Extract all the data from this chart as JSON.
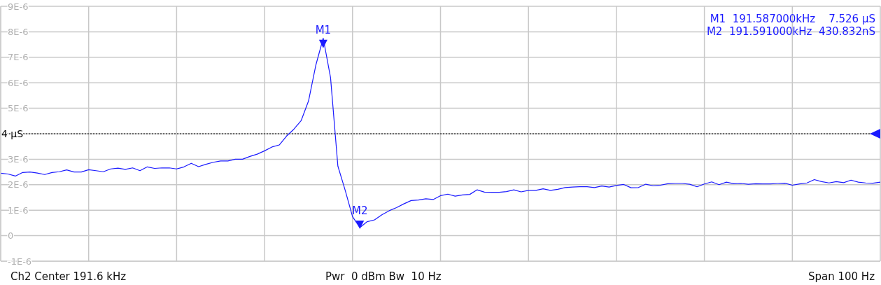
{
  "chart_data": {
    "type": "line",
    "categories": [
      null,
      null,
      null,
      null,
      null,
      null,
      null,
      null,
      null,
      null,
      null,
      null,
      null,
      null,
      null,
      null,
      null,
      null,
      null,
      null,
      null,
      null,
      null,
      null,
      null,
      null,
      null,
      null,
      null,
      null,
      null,
      null,
      null,
      null,
      null,
      null,
      null,
      null,
      null,
      null,
      null,
      null,
      null,
      null,
      null,
      null,
      null,
      null,
      null,
      null,
      null,
      null,
      null,
      null,
      null,
      null,
      null,
      null,
      null,
      null,
      null,
      null,
      null,
      null,
      null,
      null,
      null,
      null,
      null,
      null,
      null,
      null,
      null,
      null,
      null,
      null,
      null,
      null,
      null,
      null,
      null,
      null,
      null,
      null,
      null,
      null,
      null,
      null,
      null,
      null,
      null,
      null,
      null,
      null,
      null,
      null,
      null,
      null,
      null,
      null,
      null,
      null,
      null,
      null,
      null,
      null,
      null,
      null,
      null,
      null,
      null,
      null,
      null,
      null,
      null,
      null,
      null,
      null,
      null,
      null,
      null
    ],
    "ylim": [
      -1e-06,
      9e-06
    ],
    "yticks": [
      {
        "value": -1e-06,
        "label": "-1E-6"
      },
      0,
      {
        "value": 1e-06,
        "label": "1E-6"
      },
      {
        "value": 2e-06,
        "label": "2E-6"
      },
      {
        "value": 3e-06,
        "label": "3E-6"
      },
      {
        "value": 4e-06,
        "label": null
      },
      {
        "value": 5e-06,
        "label": "5E-6"
      },
      {
        "value": 6e-06,
        "label": "6E-6"
      },
      {
        "value": 7e-06,
        "label": "7E-6"
      },
      {
        "value": 8e-06,
        "label": "8E-6"
      },
      {
        "value": 9e-06,
        "label": "9E-6"
      }
    ],
    "tick_labels": "y",
    "grid": true,
    "marker": "none",
    "line_style": "solid",
    "series": [
      {
        "color": "#1a1aff",
        "values": [
          2.45e-06,
          2.42e-06,
          2.34e-06,
          2.48e-06,
          2.5e-06,
          2.46e-06,
          2.4e-06,
          2.48e-06,
          2.51e-06,
          2.58e-06,
          2.5e-06,
          2.5e-06,
          2.59e-06,
          2.55e-06,
          2.51e-06,
          2.62e-06,
          2.65e-06,
          2.6e-06,
          2.66e-06,
          2.55e-06,
          2.7e-06,
          2.64e-06,
          2.66e-06,
          2.66e-06,
          2.62e-06,
          2.7e-06,
          2.84e-06,
          2.71e-06,
          2.8e-06,
          2.88e-06,
          2.93e-06,
          2.93e-06,
          3e-06,
          3e-06,
          3.11e-06,
          3.2e-06,
          3.33e-06,
          3.48e-06,
          3.56e-06,
          3.91e-06,
          4.18e-06,
          4.52e-06,
          5.29e-06,
          6.7e-06,
          7.75e-06,
          6.2e-06,
          2.73e-06,
          1.78e-06,
          7.5e-07,
          3.2e-07,
          5.5e-07,
          6.2e-07,
          8.2e-07,
          9.8e-07,
          1.1e-06,
          1.25e-06,
          1.38e-06,
          1.4e-06,
          1.45e-06,
          1.42e-06,
          1.57e-06,
          1.63e-06,
          1.55e-06,
          1.6e-06,
          1.62e-06,
          1.8e-06,
          1.71e-06,
          1.7e-06,
          1.7e-06,
          1.73e-06,
          1.8e-06,
          1.72e-06,
          1.78e-06,
          1.78e-06,
          1.84e-06,
          1.78e-06,
          1.82e-06,
          1.89e-06,
          1.91e-06,
          1.92e-06,
          1.92e-06,
          1.89e-06,
          1.95e-06,
          1.91e-06,
          1.97e-06,
          2.01e-06,
          1.88e-06,
          1.89e-06,
          2.02e-06,
          1.96e-06,
          1.98e-06,
          2.04e-06,
          2.05e-06,
          2.05e-06,
          2.02e-06,
          1.92e-06,
          2.03e-06,
          2.11e-06,
          2e-06,
          2.1e-06,
          2.04e-06,
          2.05e-06,
          2.02e-06,
          2.04e-06,
          2.03e-06,
          2.03e-06,
          2.05e-06,
          2.06e-06,
          1.98e-06,
          2.03e-06,
          2.07e-06,
          2.2e-06,
          2.12e-06,
          2.07e-06,
          2.12e-06,
          2.08e-06,
          2.18e-06,
          2.1e-06,
          2.07e-06,
          2.06e-06,
          2.1e-06
        ]
      }
    ],
    "ref_lines": [
      {
        "axis": "y",
        "value": 4e-06,
        "label": "4 µS",
        "color": "#000000",
        "line_style": "dotted"
      }
    ],
    "annotations": [
      {
        "text": "M1",
        "y": 7.526e-06
      },
      {
        "text": "M2",
        "y": 4.30832e-07
      },
      "M1  191.587000kHz    7.526 µS",
      "M2  191.591000kHz  430.832nS",
      "Ch2 Center 191.6 kHz",
      "Pwr  0 dBm Bw  10 Hz",
      "Span 100 Hz"
    ]
  }
}
